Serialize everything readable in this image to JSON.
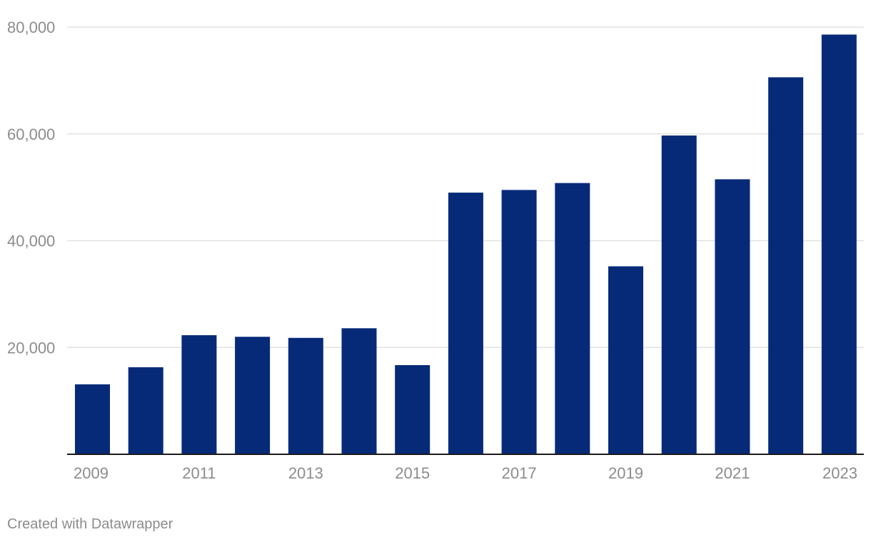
{
  "chart_data": {
    "type": "bar",
    "title": "",
    "xlabel": "",
    "ylabel": "",
    "categories": [
      "2009",
      "2010",
      "2011",
      "2012",
      "2013",
      "2014",
      "2015",
      "2016",
      "2017",
      "2018",
      "2019",
      "2020",
      "2021",
      "2022",
      "2023"
    ],
    "x_tick_labels": [
      "2009",
      "2011",
      "2013",
      "2015",
      "2017",
      "2019",
      "2021",
      "2023"
    ],
    "values": [
      13100,
      16300,
      22300,
      22000,
      21800,
      23600,
      16700,
      49000,
      49500,
      50800,
      35200,
      59700,
      51500,
      70600,
      78600
    ],
    "ylim": [
      0,
      80000
    ],
    "y_ticks": [
      20000,
      40000,
      60000,
      80000
    ],
    "y_tick_labels": [
      "20,000",
      "40,000",
      "60,000",
      "80,000"
    ],
    "grid": true,
    "legend": "none",
    "bar_color": "#062a78"
  },
  "footer": {
    "credit": "Created with Datawrapper"
  }
}
